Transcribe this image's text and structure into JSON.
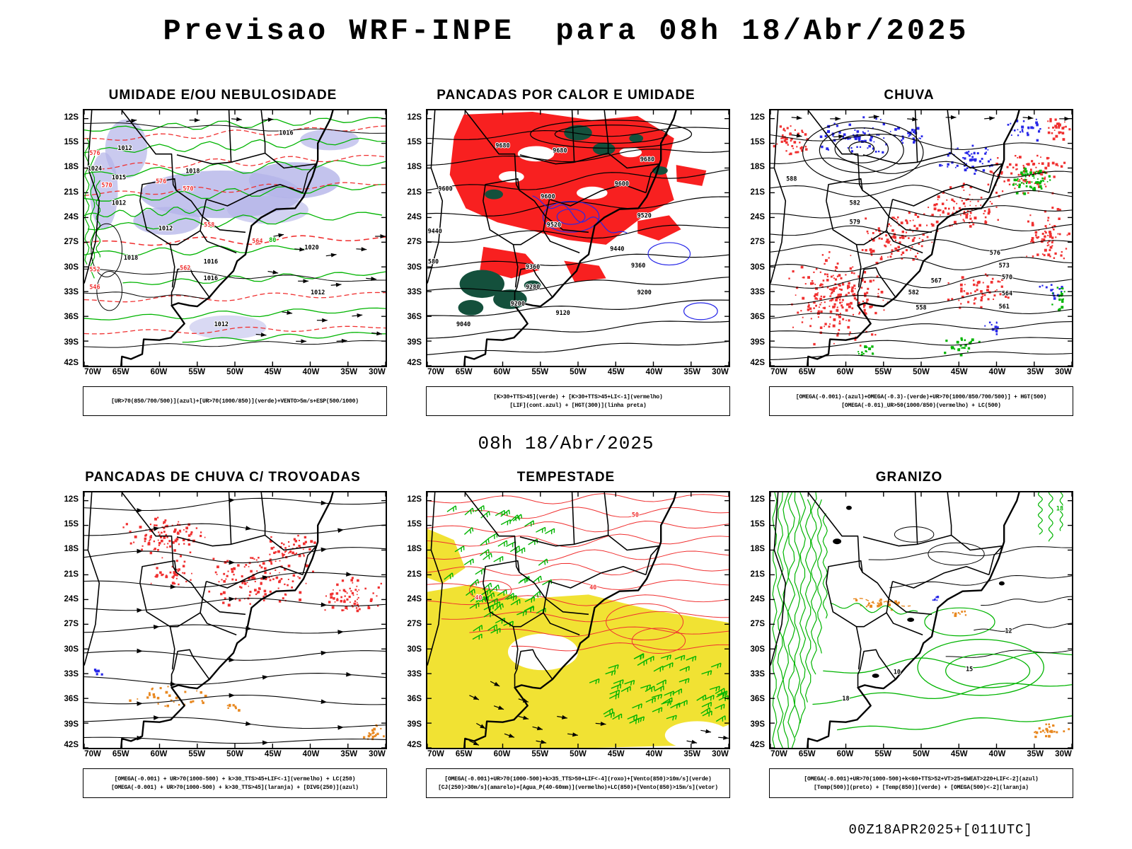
{
  "page": {
    "title": "Previsao WRF-INPE  para 08h 18/Abr/2025",
    "subtitle": "08h 18/Abr/2025",
    "footer": "00Z18APR2025+[011UTC]"
  },
  "axes": {
    "lat": [
      "12S",
      "15S",
      "18S",
      "21S",
      "24S",
      "27S",
      "30S",
      "33S",
      "36S",
      "39S",
      "42S"
    ],
    "lon": [
      "70W",
      "65W",
      "60W",
      "55W",
      "50W",
      "45W",
      "40W",
      "35W",
      "30W"
    ]
  },
  "colors": {
    "green": "#00b400",
    "red": "#f03030",
    "red_fill": "#f82020",
    "blue": "#2828e8",
    "lavender": "#b4b4e8",
    "yellow": "#f0e028",
    "dark_green": "#14503c",
    "orange": "#e88820",
    "black": "#000000",
    "white": "#ffffff"
  },
  "panels": [
    {
      "id": "umidade",
      "title": "UMIDADE E/OU NEBULOSIDADE",
      "caption_lines": [
        "[UR>70(850/700/500)](azul)+[UR>70(1000/850)](verde)+VENTO>5m/s+ESP(500/1000)"
      ],
      "labels": [
        [
          "1016",
          0.67,
          0.095,
          "black"
        ],
        [
          "1012",
          0.135,
          0.155,
          "black"
        ],
        [
          "1015",
          0.115,
          0.27,
          "black"
        ],
        [
          "1024",
          0.035,
          0.235,
          "black"
        ],
        [
          "1018",
          0.36,
          0.245,
          "black"
        ],
        [
          "1012",
          0.115,
          0.37,
          "black"
        ],
        [
          "1012",
          0.27,
          0.47,
          "black"
        ],
        [
          "1016",
          0.42,
          0.6,
          "black"
        ],
        [
          "1018",
          0.155,
          0.585,
          "black"
        ],
        [
          "1016",
          0.42,
          0.665,
          "black"
        ],
        [
          "1020",
          0.755,
          0.545,
          "black"
        ],
        [
          "1012",
          0.775,
          0.72,
          "black"
        ],
        [
          "1012",
          0.455,
          0.845,
          "black"
        ],
        [
          "576",
          0.035,
          0.175,
          "red"
        ],
        [
          "570",
          0.075,
          0.3,
          "red"
        ],
        [
          "576",
          0.255,
          0.285,
          "red"
        ],
        [
          "570",
          0.345,
          0.315,
          "red"
        ],
        [
          "564",
          0.575,
          0.52,
          "red"
        ],
        [
          "562",
          0.335,
          0.625,
          "red"
        ],
        [
          "552",
          0.035,
          0.63,
          "red"
        ],
        [
          "546",
          0.035,
          0.7,
          "red"
        ],
        [
          "558",
          0.415,
          0.455,
          "red"
        ],
        [
          "80",
          0.625,
          0.515,
          "green"
        ]
      ]
    },
    {
      "id": "pancadas-calor-umidade",
      "title": "PANCADAS POR CALOR E UMIDADE",
      "caption_lines": [
        "[K>30+TTS>45](verde) + [K>30+TTS>45+LI<-1](vermelho)",
        "[LIF](cont.azul) + [HGT(300)](linha preta)"
      ],
      "labels": [
        [
          "9680",
          0.25,
          0.145,
          "black"
        ],
        [
          "9680",
          0.44,
          0.165,
          "black"
        ],
        [
          "9680",
          0.73,
          0.2,
          "black"
        ],
        [
          "9600",
          0.06,
          0.315,
          "black"
        ],
        [
          "9600",
          0.4,
          0.345,
          "black"
        ],
        [
          "9600",
          0.645,
          0.295,
          "black"
        ],
        [
          "9520",
          0.42,
          0.455,
          "black"
        ],
        [
          "9520",
          0.72,
          0.42,
          "black"
        ],
        [
          "9440",
          0.025,
          0.48,
          "black"
        ],
        [
          "9440",
          0.63,
          0.55,
          "black"
        ],
        [
          "9360",
          0.35,
          0.62,
          "black"
        ],
        [
          "9360",
          0.7,
          0.615,
          "black"
        ],
        [
          "9280",
          0.35,
          0.7,
          "black"
        ],
        [
          "9200",
          0.3,
          0.765,
          "black"
        ],
        [
          "9200",
          0.72,
          0.72,
          "black"
        ],
        [
          "9120",
          0.45,
          0.8,
          "black"
        ],
        [
          "9040",
          0.12,
          0.845,
          "black"
        ],
        [
          "580",
          0.02,
          0.6,
          "black"
        ]
      ]
    },
    {
      "id": "chuva",
      "title": "CHUVA",
      "caption_lines": [
        "[OMEGA(-0.001)-(azul)+OMEGA(-0.3)-(verde)+UR>70(1000/850/700/500)] + HGT(500)",
        "[OMEGA(-0.01)_UR>50(1000/850)(vermelho) + LC(500)"
      ],
      "labels": [
        [
          "588",
          0.07,
          0.275,
          "black"
        ],
        [
          "582",
          0.28,
          0.37,
          "black"
        ],
        [
          "579",
          0.28,
          0.445,
          "black"
        ],
        [
          "576",
          0.745,
          0.565,
          "black"
        ],
        [
          "573",
          0.775,
          0.615,
          "black"
        ],
        [
          "570",
          0.785,
          0.66,
          "black"
        ],
        [
          "567",
          0.55,
          0.675,
          "black"
        ],
        [
          "564",
          0.785,
          0.725,
          "black"
        ],
        [
          "561",
          0.775,
          0.775,
          "black"
        ],
        [
          "558",
          0.5,
          0.78,
          "black"
        ],
        [
          "582",
          0.475,
          0.72,
          "black"
        ]
      ]
    },
    {
      "id": "pancadas-chuva-trovoadas",
      "title": "PANCADAS DE CHUVA C/ TROVOADAS",
      "caption_lines": [
        "[OMEGA(-0.001) + UR>70(1000-500) + k>30_TTS>45+LIF<-1](vermelho) + LC(250)",
        "[OMEGA(-0.001) + UR>70(1000-500) + k>30_TTS>45](laranja) + [DIVG(250)](azul)"
      ],
      "labels": []
    },
    {
      "id": "tempestade",
      "title": "TEMPESTADE",
      "caption_lines": [
        "[OMEGA(-0.001)+UR>70(1000-500)+k>35_TTS>50+LIF<-4](roxo)+[Vento(850)>10m/s](verde)",
        "[CJ(250)>30m/s](amarelo)+[Agua_P(40-60mm)](vermelho)+LC(850)+[Vento(850)>15m/s](vetor)"
      ],
      "labels": [
        [
          "40",
          0.17,
          0.42,
          "red"
        ],
        [
          "40",
          0.55,
          0.38,
          "red"
        ],
        [
          "50",
          0.69,
          0.095,
          "red"
        ]
      ]
    },
    {
      "id": "granizo",
      "title": "GRANIZO",
      "caption_lines": [
        "[OMEGA(-0.001)+UR>70(1000-500)+k<60+TTS>52+VT>25+SWEAT>220+LIF<-2](azul)",
        "[Temp(500)](preto) + [Temp(850)](verde) + [OMEGA(500)<-2](laranja)"
      ],
      "labels": [
        [
          "12",
          0.79,
          0.55,
          "black"
        ],
        [
          "15",
          0.66,
          0.7,
          "black"
        ],
        [
          "18",
          0.25,
          0.815,
          "black"
        ],
        [
          "10",
          0.42,
          0.71,
          "black"
        ],
        [
          "18",
          0.96,
          0.07,
          "green"
        ]
      ]
    }
  ]
}
